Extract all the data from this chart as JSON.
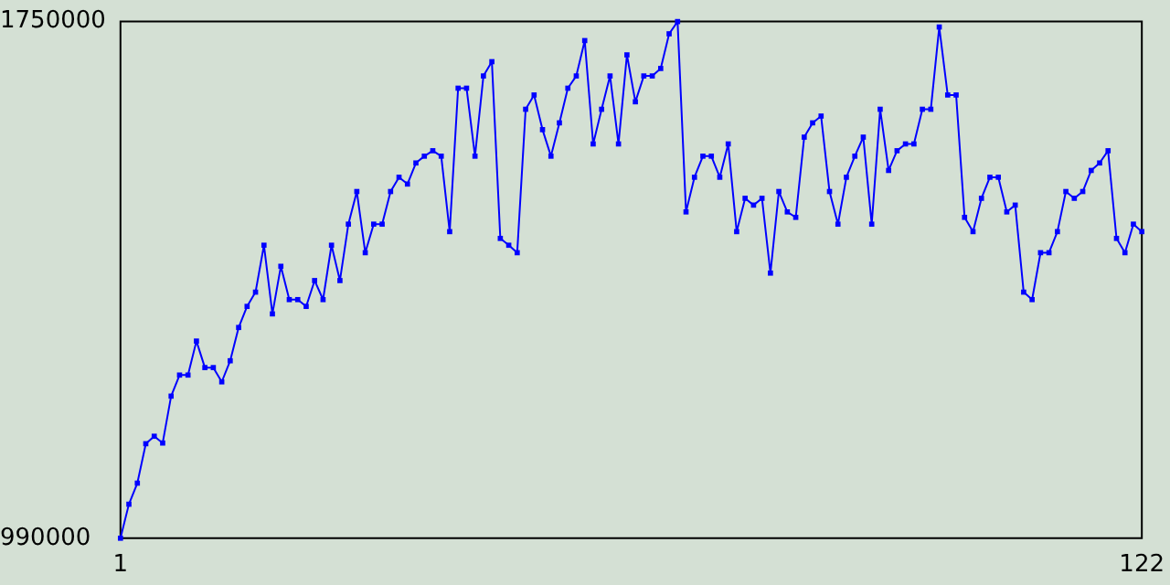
{
  "chart_data": {
    "type": "line",
    "x": [
      1,
      2,
      3,
      4,
      5,
      6,
      7,
      8,
      9,
      10,
      11,
      12,
      13,
      14,
      15,
      16,
      17,
      18,
      19,
      20,
      21,
      22,
      23,
      24,
      25,
      26,
      27,
      28,
      29,
      30,
      31,
      32,
      33,
      34,
      35,
      36,
      37,
      38,
      39,
      40,
      41,
      42,
      43,
      44,
      45,
      46,
      47,
      48,
      49,
      50,
      51,
      52,
      53,
      54,
      55,
      56,
      57,
      58,
      59,
      60,
      61,
      62,
      63,
      64,
      65,
      66,
      67,
      68,
      69,
      70,
      71,
      72,
      73,
      74,
      75,
      76,
      77,
      78,
      79,
      80,
      81,
      82,
      83,
      84,
      85,
      86,
      87,
      88,
      89,
      90,
      91,
      92,
      93,
      94,
      95,
      96,
      97,
      98,
      99,
      100,
      101,
      102,
      103,
      104,
      105,
      106,
      107,
      108,
      109,
      110,
      111,
      112,
      113,
      114,
      115,
      116,
      117,
      118,
      119,
      120,
      121,
      122
    ],
    "series": [
      {
        "color": "#0000ff",
        "values": [
          990000,
          1040000,
          1071000,
          1129000,
          1140000,
          1130000,
          1199000,
          1230000,
          1230000,
          1280000,
          1241000,
          1241000,
          1220000,
          1251000,
          1300000,
          1331000,
          1352000,
          1421000,
          1320000,
          1390000,
          1341000,
          1341000,
          1331000,
          1369000,
          1341000,
          1421000,
          1369000,
          1452000,
          1500000,
          1410000,
          1452000,
          1452000,
          1500000,
          1521000,
          1511000,
          1542000,
          1552000,
          1560000,
          1552000,
          1441000,
          1652000,
          1652000,
          1552000,
          1670000,
          1691000,
          1431000,
          1421000,
          1410000,
          1621000,
          1642000,
          1591000,
          1552000,
          1601000,
          1652000,
          1670000,
          1722000,
          1570000,
          1621000,
          1670000,
          1570000,
          1701000,
          1632000,
          1670000,
          1670000,
          1681000,
          1732000,
          1750000,
          1470000,
          1521000,
          1552000,
          1552000,
          1521000,
          1570000,
          1441000,
          1490000,
          1480000,
          1490000,
          1380000,
          1500000,
          1470000,
          1462000,
          1580000,
          1601000,
          1611000,
          1500000,
          1452000,
          1521000,
          1552000,
          1580000,
          1452000,
          1621000,
          1531000,
          1560000,
          1570000,
          1570000,
          1621000,
          1621000,
          1742000,
          1642000,
          1642000,
          1462000,
          1441000,
          1490000,
          1521000,
          1521000,
          1470000,
          1480000,
          1352000,
          1341000,
          1410000,
          1410000,
          1441000,
          1500000,
          1490000,
          1500000,
          1531000,
          1542000,
          1560000,
          1431000,
          1410000,
          1452000,
          1441000
        ]
      }
    ],
    "xlim": [
      1,
      122
    ],
    "xticks": [
      1,
      122
    ],
    "ylim": [
      990000,
      1750000
    ],
    "yticks": [
      990000,
      1750000
    ],
    "marker": "square",
    "line_style": "solid",
    "grid": false,
    "legend": false
  }
}
